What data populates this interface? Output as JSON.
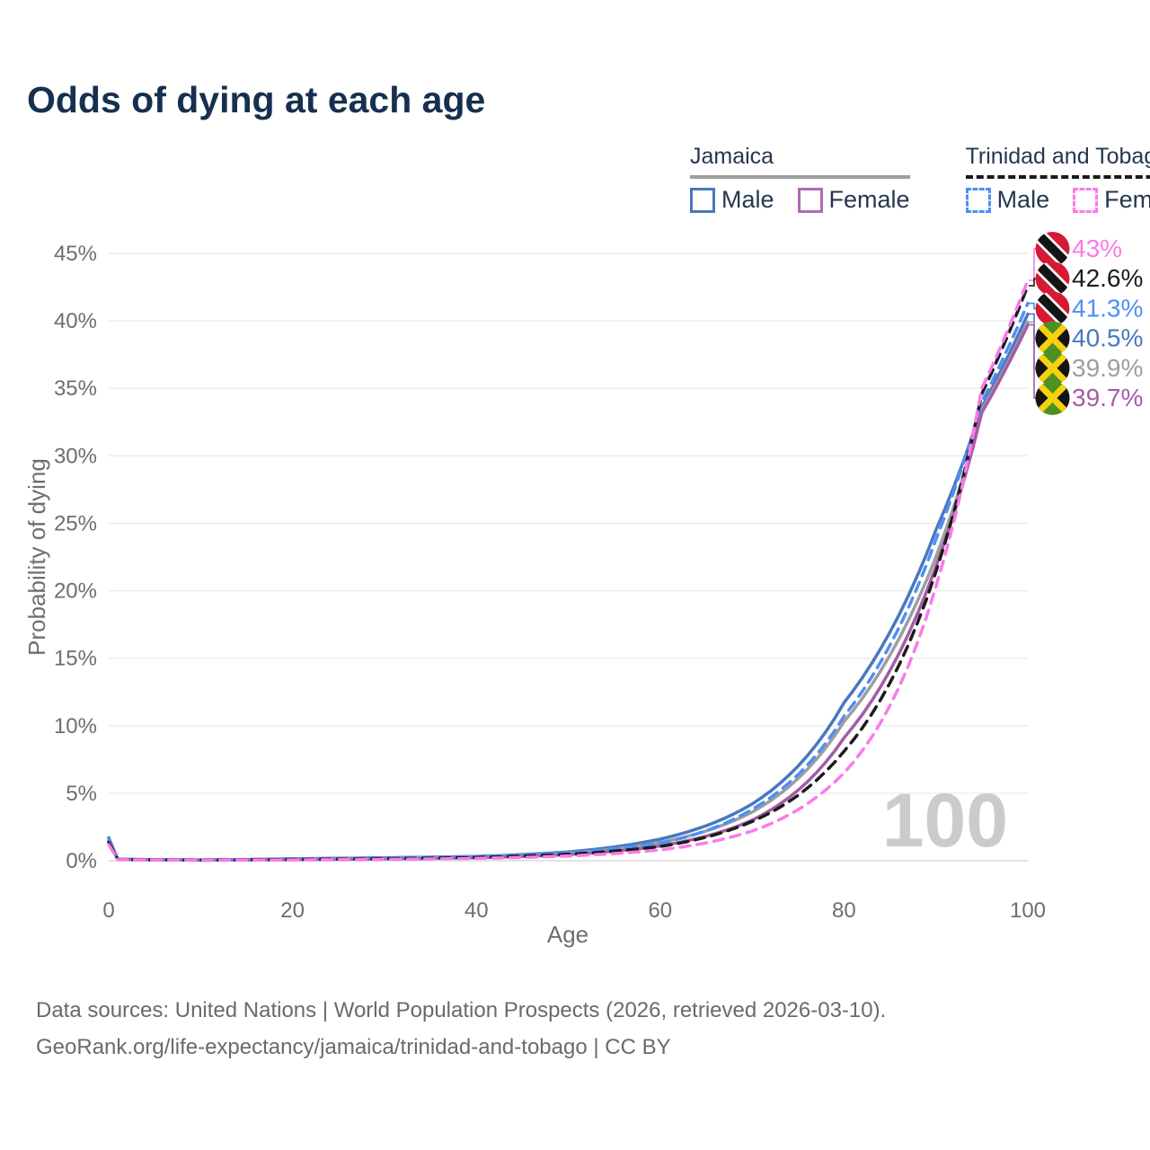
{
  "title": "Odds of dying at each age",
  "legend": {
    "groups": [
      {
        "name": "Jamaica",
        "line_style": "solid",
        "underline_color": "#9e9e9e",
        "items": [
          {
            "label": "Male",
            "color": "#4878be",
            "dashed": false
          },
          {
            "label": "Female",
            "color": "#b06ab3",
            "dashed": false
          }
        ]
      },
      {
        "name": "Trinidad and Tobago",
        "line_style": "dashed",
        "underline_color": "#1a1a1a",
        "items": [
          {
            "label": "Male",
            "color": "#4f8ef7",
            "dashed": true
          },
          {
            "label": "Female",
            "color": "#fb7ae8",
            "dashed": true
          }
        ]
      }
    ]
  },
  "chart_data": {
    "type": "line",
    "title": "Odds of dying at each age",
    "xlabel": "Age",
    "ylabel": "Probability of dying",
    "xlim": [
      0,
      100
    ],
    "ylim_pct": [
      0,
      45
    ],
    "x_ticks": [
      0,
      20,
      40,
      60,
      80,
      100
    ],
    "y_ticks_pct": [
      0,
      5,
      10,
      15,
      20,
      25,
      30,
      35,
      40,
      45
    ],
    "grid": true,
    "legend_position": "top-right",
    "watermark": "100",
    "anchor_ages": [
      0,
      1,
      10,
      20,
      30,
      40,
      50,
      60,
      70,
      80,
      90,
      95,
      100
    ],
    "series": [
      {
        "name": "Jamaica Male",
        "country": "Jamaica",
        "sex": "Male",
        "flag": "jm",
        "color": "#4878be",
        "dash": "solid",
        "values_pct": [
          1.7,
          0.12,
          0.06,
          0.15,
          0.22,
          0.32,
          0.65,
          1.6,
          4.2,
          11.7,
          24.5,
          33.6,
          40.5
        ],
        "end_label": "40.5%"
      },
      {
        "name": "Jamaica Both sexes",
        "country": "Jamaica",
        "sex": "Both",
        "flag": "jm",
        "color": "#9e9e9e",
        "dash": "solid",
        "values_pct": [
          1.55,
          0.11,
          0.05,
          0.12,
          0.18,
          0.28,
          0.55,
          1.35,
          3.6,
          10.3,
          22.5,
          33.4,
          39.9
        ],
        "end_label": "39.9%"
      },
      {
        "name": "Jamaica Female",
        "country": "Jamaica",
        "sex": "Female",
        "flag": "jm",
        "color": "#a45ca8",
        "dash": "solid",
        "values_pct": [
          1.4,
          0.1,
          0.04,
          0.08,
          0.13,
          0.22,
          0.45,
          1.1,
          3.0,
          9.1,
          21.8,
          33.2,
          39.7
        ],
        "end_label": "39.7%"
      },
      {
        "name": "Trinidad and Tobago Male",
        "country": "Trinidad and Tobago",
        "sex": "Male",
        "flag": "tt",
        "color": "#4f8ef7",
        "dash": "dashed",
        "values_pct": [
          1.5,
          0.1,
          0.05,
          0.12,
          0.2,
          0.3,
          0.6,
          1.3,
          3.8,
          10.7,
          23.8,
          34.0,
          41.3
        ],
        "end_label": "41.3%"
      },
      {
        "name": "Trinidad and Tobago Both sexes",
        "country": "Trinidad and Tobago",
        "sex": "Both",
        "flag": "tt",
        "color": "#1c1c1c",
        "dash": "dashed",
        "values_pct": [
          1.35,
          0.09,
          0.04,
          0.09,
          0.15,
          0.24,
          0.48,
          1.05,
          2.9,
          8.1,
          21.4,
          34.6,
          42.6
        ],
        "end_label": "42.6%"
      },
      {
        "name": "Trinidad and Tobago Female",
        "country": "Trinidad and Tobago",
        "sex": "Female",
        "flag": "tt",
        "color": "#fb7ae8",
        "dash": "dashed",
        "values_pct": [
          1.2,
          0.08,
          0.03,
          0.06,
          0.1,
          0.17,
          0.35,
          0.8,
          2.2,
          6.5,
          20.3,
          35.0,
          43.0
        ],
        "end_label": "43%"
      }
    ]
  },
  "footer": {
    "line1": "Data sources: United Nations | World Population Prospects (2026, retrieved 2026-03-10).",
    "line2": "GeoRank.org/life-expectancy/jamaica/trinidad-and-tobago | CC BY"
  }
}
